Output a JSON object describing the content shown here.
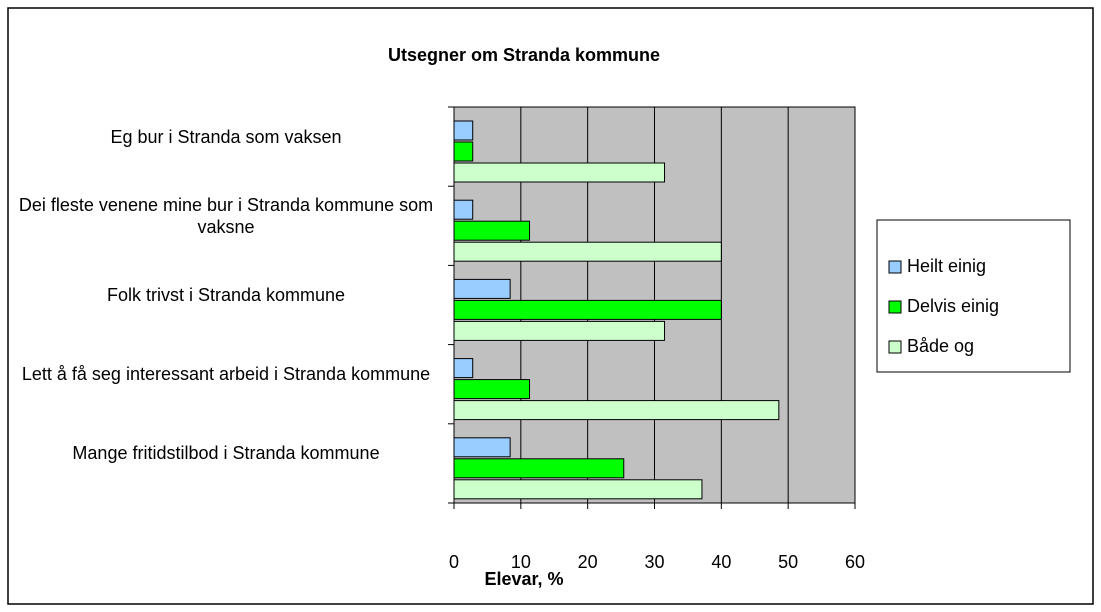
{
  "chart_data": {
    "type": "barh",
    "title": "Utsegner om Stranda kommune",
    "xlabel": "Elevar, %",
    "categories": [
      "Eg bur i Stranda som vaksen",
      "Dei fleste venene mine bur i Stranda kommune som vaksne",
      "Folk trivst i Stranda kommune",
      "Lett å få seg interessant arbeid i Stranda kommune",
      "Mange fritidstilbod i Stranda kommune"
    ],
    "series": [
      {
        "name": "Heilt einig",
        "color": "#99ccff",
        "values": [
          2.8,
          2.8,
          8.4,
          2.8,
          8.4
        ]
      },
      {
        "name": "Delvis einig",
        "color": "#00ff00",
        "values": [
          2.8,
          11.3,
          40,
          11.3,
          25.4
        ]
      },
      {
        "name": "Både og",
        "color": "#ccffcc",
        "values": [
          31.5,
          40,
          31.5,
          48.6,
          37.1
        ]
      }
    ],
    "xlim": [
      0,
      60
    ],
    "xticks": [
      0,
      10,
      20,
      30,
      40,
      50,
      60
    ],
    "grid": true,
    "legend": "right"
  }
}
